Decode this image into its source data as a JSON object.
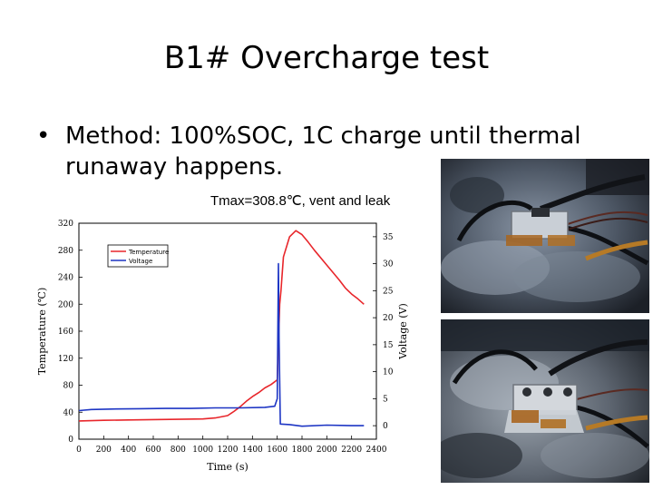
{
  "slide": {
    "title": "B1# Overcharge test",
    "bullet_symbol": "•",
    "bullet_text": "Method: 100%SOC, 1C charge until thermal runaway happens.",
    "caption": "Tmax=308.8℃, vent and leak"
  },
  "chart_data": {
    "type": "line",
    "xlabel": "Time (s)",
    "ylabel_left": "Temperature (℃)",
    "ylabel_right": "Voltage (V)",
    "xlim": [
      0,
      2400
    ],
    "ylim_left": [
      0,
      320
    ],
    "ylim_right": [
      -2.5,
      37.5
    ],
    "xticks": [
      "0",
      "200",
      "400",
      "600",
      "800",
      "1000",
      "1200",
      "1400",
      "1600",
      "1800",
      "2000",
      "2200",
      "2400"
    ],
    "yticks_left": [
      "0",
      "40",
      "80",
      "120",
      "160",
      "200",
      "240",
      "280",
      "320"
    ],
    "yticks_right": [
      "0",
      "5",
      "10",
      "15",
      "20",
      "25",
      "30",
      "35"
    ],
    "legend_position": "top-left",
    "grid": false,
    "series": [
      {
        "name": "Temperature",
        "axis": "left",
        "color": "#e8262b",
        "x": [
          0,
          200,
          400,
          600,
          800,
          1000,
          1100,
          1200,
          1250,
          1300,
          1350,
          1400,
          1450,
          1500,
          1550,
          1600,
          1620,
          1630,
          1650,
          1700,
          1750,
          1800,
          1850,
          1900,
          2000,
          2100,
          2150,
          2200,
          2250,
          2300
        ],
        "y": [
          27,
          28,
          28.5,
          29,
          29.5,
          30,
          31.5,
          35,
          41,
          48,
          56,
          63,
          69,
          76,
          81,
          88,
          200,
          220,
          270,
          300,
          309,
          303,
          292,
          280,
          258,
          236,
          224,
          215,
          208,
          200
        ]
      },
      {
        "name": "Voltage",
        "axis": "right",
        "color": "#1d35c4",
        "x": [
          0,
          100,
          300,
          500,
          700,
          900,
          1100,
          1300,
          1500,
          1580,
          1600,
          1610,
          1615,
          1625,
          1700,
          1800,
          2000,
          2200,
          2300
        ],
        "y": [
          2.8,
          3.0,
          3.1,
          3.15,
          3.2,
          3.2,
          3.3,
          3.3,
          3.4,
          3.6,
          5.0,
          30.0,
          16.0,
          0.3,
          0.2,
          -0.1,
          0.1,
          0.0,
          0.0
        ]
      }
    ]
  },
  "photos": {
    "top": {
      "kind": "test-photo-before"
    },
    "bottom": {
      "kind": "test-photo-after"
    }
  }
}
